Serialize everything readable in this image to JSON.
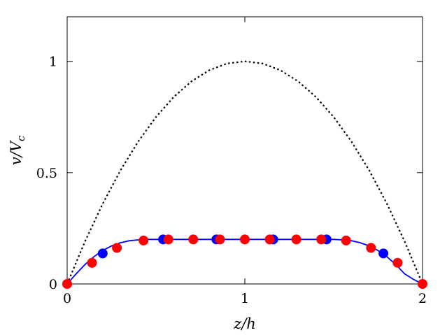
{
  "chart_data": {
    "type": "scatter",
    "xlabel": "z/h",
    "ylabel": "v/V_c",
    "xlim": [
      0,
      2
    ],
    "ylim": [
      0,
      1.2
    ],
    "xticks": [
      0,
      1,
      2
    ],
    "yticks": [
      0,
      0.5,
      1
    ],
    "xtick_labels": [
      "0",
      "1",
      "2"
    ],
    "ytick_labels": [
      "0",
      "0.5",
      "1"
    ],
    "grid": false,
    "legend": "none",
    "series": [
      {
        "kind": "dotted-line",
        "color": "#000000",
        "x": [
          0,
          0.1,
          0.2,
          0.3,
          0.4,
          0.5,
          0.6,
          0.7,
          0.8,
          0.9,
          1.0,
          1.1,
          1.2,
          1.3,
          1.4,
          1.5,
          1.6,
          1.7,
          1.8,
          1.9,
          2.0
        ],
        "y": [
          0,
          0.19,
          0.36,
          0.51,
          0.64,
          0.75,
          0.84,
          0.91,
          0.96,
          0.99,
          1.0,
          0.99,
          0.96,
          0.91,
          0.84,
          0.75,
          0.64,
          0.51,
          0.36,
          0.19,
          0
        ]
      },
      {
        "kind": "solid-line",
        "color": "#0000ff",
        "x": [
          0,
          0.05,
          0.1,
          0.15,
          0.2,
          0.25,
          0.3,
          0.35,
          0.4,
          0.45,
          0.5,
          0.6,
          0.8,
          1.0,
          1.2,
          1.4,
          1.5,
          1.55,
          1.6,
          1.65,
          1.7,
          1.75,
          1.8,
          1.85,
          1.9,
          1.95,
          2.0
        ],
        "y": [
          0,
          0.045,
          0.087,
          0.122,
          0.15,
          0.171,
          0.185,
          0.194,
          0.198,
          0.2,
          0.2,
          0.2,
          0.2,
          0.2,
          0.2,
          0.2,
          0.2,
          0.198,
          0.194,
          0.185,
          0.171,
          0.15,
          0.122,
          0.087,
          0.045,
          0.02,
          0
        ]
      },
      {
        "kind": "markers",
        "color": "#0000ff",
        "x": [
          0.2,
          0.54,
          0.84,
          1.16,
          1.46,
          1.78
        ],
        "y": [
          0.137,
          0.2,
          0.2,
          0.2,
          0.2,
          0.137
        ]
      },
      {
        "kind": "markers",
        "color": "#ff0000",
        "x": [
          0,
          0.14,
          0.28,
          0.43,
          0.57,
          0.71,
          0.86,
          1.0,
          1.14,
          1.29,
          1.43,
          1.57,
          1.71,
          1.86,
          2.0
        ],
        "y": [
          0,
          0.095,
          0.162,
          0.195,
          0.2,
          0.2,
          0.2,
          0.2,
          0.2,
          0.2,
          0.2,
          0.195,
          0.162,
          0.095,
          0
        ]
      }
    ]
  }
}
